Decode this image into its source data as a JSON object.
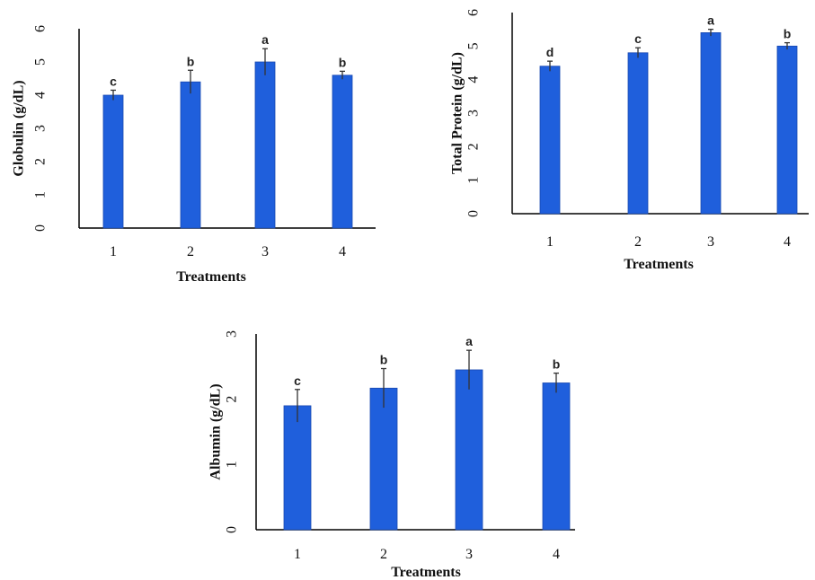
{
  "colors": {
    "bar": "#1f5fdc",
    "bar_edge": "#1848b0",
    "axis": "#000000",
    "error": "#333333"
  },
  "chart_data": [
    {
      "type": "bar",
      "categories": [
        "1",
        "2",
        "3",
        "4"
      ],
      "values": [
        4.0,
        4.4,
        5.0,
        4.6
      ],
      "errors": [
        0.15,
        0.35,
        0.4,
        0.12
      ],
      "letters": [
        "c",
        "b",
        "a",
        "b"
      ],
      "xlabel": "Treatments",
      "ylabel": "Globulin (g/dL)",
      "ylim": [
        0,
        6
      ],
      "yticks": [
        "0",
        "1",
        "2",
        "3",
        "4",
        "5",
        "6"
      ],
      "grid": false
    },
    {
      "type": "bar",
      "categories": [
        "1",
        "2",
        "3",
        "4"
      ],
      "values": [
        4.4,
        4.8,
        5.4,
        5.0
      ],
      "errors": [
        0.15,
        0.15,
        0.1,
        0.1
      ],
      "letters": [
        "d",
        "c",
        "a",
        "b"
      ],
      "xlabel": "Treatments",
      "ylabel": "Total Protein (g/dL)",
      "ylim": [
        0,
        6
      ],
      "yticks": [
        "0",
        "1",
        "2",
        "3",
        "4",
        "5",
        "6"
      ],
      "grid": false
    },
    {
      "type": "bar",
      "categories": [
        "1",
        "2",
        "3",
        "4"
      ],
      "values": [
        1.9,
        2.17,
        2.45,
        2.25
      ],
      "errors": [
        0.25,
        0.3,
        0.3,
        0.15
      ],
      "letters": [
        "c",
        "b",
        "a",
        "b"
      ],
      "xlabel": "Treatments",
      "ylabel": "Albumin (g/dL)",
      "ylim": [
        0,
        3
      ],
      "yticks": [
        "0",
        "1",
        "2",
        "3"
      ],
      "grid": false
    }
  ]
}
